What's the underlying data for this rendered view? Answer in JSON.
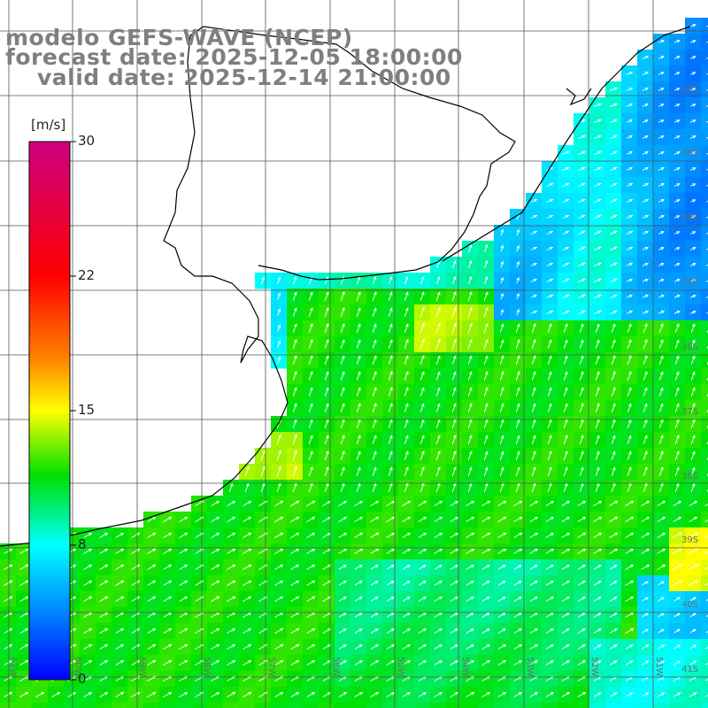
{
  "title": {
    "line1": "modelo GEFS-WAVE (NCEP)",
    "line2": "forecast date: 2025-12-05 18:00:00",
    "line3": "valid date: 2025-12-14 21:00:00"
  },
  "colorbar": {
    "unit_label": "[m/s]",
    "ticks": [
      "30",
      "22",
      "15",
      "8",
      "0"
    ],
    "stops": [
      "#cc0080",
      "#ff0000",
      "#ff8000",
      "#ffff00",
      "#00e000",
      "#00ffff",
      "#0080ff",
      "#0000ff"
    ]
  },
  "map": {
    "lat_labels": [
      "32S",
      "33S",
      "34S",
      "35S",
      "36S",
      "37S",
      "38S",
      "39S",
      "40S",
      "41S"
    ],
    "lon_labels": [
      "61W",
      "60W",
      "59W",
      "58W",
      "57W",
      "56W",
      "55W",
      "54W",
      "53W",
      "52W",
      "51W"
    ],
    "colors": {
      "land": "#ffffff",
      "coastline": "#000000",
      "grid": "#555555",
      "arrows": "#ffffff"
    }
  }
}
